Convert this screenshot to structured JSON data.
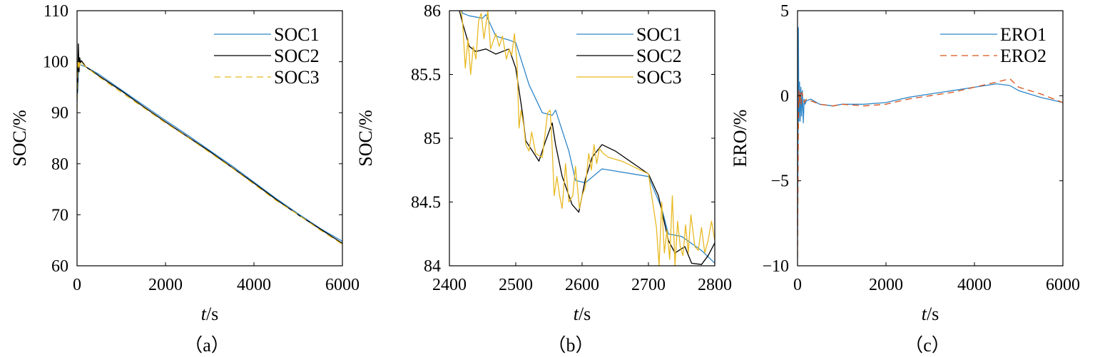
{
  "chart_data": [
    {
      "type": "line",
      "panel_label": "（a）",
      "xlabel_italic": "t",
      "xlabel_rest": "/s",
      "ylabel": "SOC/%",
      "xlim": [
        0,
        6000
      ],
      "ylim": [
        60,
        110
      ],
      "xticks": [
        0,
        2000,
        4000,
        6000
      ],
      "yticks": [
        60,
        70,
        80,
        90,
        100,
        110
      ],
      "legend": "top-right",
      "grid": false,
      "series": [
        {
          "name": "SOC1",
          "color": "#2e86c8",
          "dash": "",
          "width": 1.3,
          "x": [
            0,
            20,
            40,
            60,
            100,
            200,
            500,
            1000,
            1500,
            2000,
            2500,
            3000,
            3500,
            4000,
            4500,
            5000,
            5500,
            6000
          ],
          "y": [
            92,
            95,
            100,
            99.5,
            99.3,
            99,
            97.5,
            94.5,
            91.5,
            88.5,
            85.6,
            82.6,
            79.6,
            76.4,
            73.2,
            70.2,
            67.3,
            64.8
          ]
        },
        {
          "name": "SOC2",
          "color": "#000000",
          "dash": "",
          "width": 1.3,
          "x": [
            0,
            15,
            30,
            45,
            60,
            80,
            100,
            200,
            500,
            1000,
            1500,
            2000,
            2500,
            3000,
            3500,
            4000,
            4500,
            5000,
            5500,
            6000
          ],
          "y": [
            93,
            96,
            103.5,
            98,
            100.8,
            99.8,
            100.2,
            99,
            97.2,
            94.3,
            91.2,
            88.2,
            85.3,
            82.4,
            79.3,
            76.2,
            73,
            70,
            67.2,
            64.4
          ]
        },
        {
          "name": "SOC3",
          "color": "#e8b923",
          "dash": "9,6",
          "width": 1.3,
          "x": [
            0,
            15,
            30,
            45,
            60,
            80,
            100,
            200,
            500,
            1000,
            1500,
            2000,
            2500,
            3000,
            3500,
            4000,
            4500,
            5000,
            5500,
            6000
          ],
          "y": [
            90.5,
            99,
            100.5,
            98.5,
            99.8,
            99.2,
            99.8,
            99,
            97,
            94,
            91,
            88,
            85.2,
            82.2,
            79.2,
            76,
            72.8,
            70,
            67,
            64.2
          ]
        }
      ]
    },
    {
      "type": "line",
      "panel_label": "（b）",
      "xlabel_italic": "t",
      "xlabel_rest": "/s",
      "ylabel": "SOC/%",
      "xlim": [
        2400,
        2800
      ],
      "ylim": [
        84,
        86
      ],
      "xticks": [
        2400,
        2500,
        2600,
        2700,
        2800
      ],
      "yticks": [
        84,
        84.5,
        85,
        85.5,
        86
      ],
      "legend": "top-right",
      "grid": false,
      "series": [
        {
          "name": "SOC1",
          "color": "#2e86c8",
          "dash": "",
          "width": 1.3,
          "x": [
            2400,
            2420,
            2430,
            2450,
            2455,
            2470,
            2490,
            2500,
            2520,
            2540,
            2555,
            2560,
            2580,
            2590,
            2605,
            2630,
            2700,
            2720,
            2730,
            2750,
            2780,
            2800
          ],
          "y": [
            86.2,
            85.98,
            85.96,
            85.94,
            85.97,
            85.8,
            85.77,
            85.75,
            85.42,
            85.2,
            85.18,
            85.22,
            84.9,
            84.67,
            84.65,
            84.76,
            84.7,
            84.45,
            84.25,
            84.23,
            84.12,
            84.02
          ]
        },
        {
          "name": "SOC2",
          "color": "#000000",
          "dash": "",
          "width": 1.3,
          "x": [
            2400,
            2415,
            2420,
            2430,
            2440,
            2455,
            2470,
            2490,
            2500,
            2510,
            2515,
            2525,
            2535,
            2545,
            2555,
            2560,
            2570,
            2585,
            2595,
            2605,
            2615,
            2630,
            2650,
            2700,
            2715,
            2730,
            2740,
            2755,
            2765,
            2780,
            2790,
            2800
          ],
          "y": [
            86.2,
            86,
            85.9,
            85.72,
            85.68,
            85.7,
            85.66,
            85.7,
            85.55,
            85.2,
            84.98,
            84.9,
            84.82,
            84.98,
            85.12,
            84.95,
            84.7,
            84.48,
            84.42,
            84.68,
            84.85,
            84.95,
            84.9,
            84.72,
            84.55,
            84.2,
            84.1,
            84.15,
            84.02,
            84.01,
            84.08,
            84.18
          ]
        },
        {
          "name": "SOC3",
          "color": "#e8b923",
          "dash": "",
          "width": 1.3,
          "x": [
            2400,
            2410,
            2418,
            2420,
            2424,
            2428,
            2432,
            2436,
            2440,
            2444,
            2448,
            2452,
            2458,
            2462,
            2470,
            2475,
            2480,
            2486,
            2490,
            2494,
            2498,
            2502,
            2505,
            2508,
            2512,
            2515,
            2520,
            2524,
            2530,
            2540,
            2548,
            2552,
            2555,
            2558,
            2562,
            2566,
            2570,
            2575,
            2580,
            2586,
            2590,
            2596,
            2600,
            2605,
            2610,
            2614,
            2618,
            2622,
            2626,
            2632,
            2640,
            2660,
            2700,
            2712,
            2716,
            2720,
            2724,
            2728,
            2732,
            2736,
            2740,
            2744,
            2748,
            2752,
            2756,
            2760,
            2764,
            2770,
            2775,
            2780,
            2785,
            2790,
            2795,
            2800
          ],
          "y": [
            86.2,
            86.1,
            86.0,
            85.9,
            85.55,
            85.78,
            85.5,
            85.72,
            85.62,
            85.92,
            85.98,
            85.78,
            86.0,
            85.7,
            85.82,
            85.72,
            85.8,
            85.62,
            85.7,
            85.65,
            85.82,
            85.58,
            85.08,
            85.22,
            85.1,
            84.95,
            84.9,
            85.05,
            84.88,
            84.85,
            85.2,
            85.22,
            84.92,
            84.55,
            84.7,
            84.55,
            84.45,
            84.8,
            84.5,
            84.55,
            84.78,
            84.45,
            84.55,
            84.62,
            84.88,
            84.75,
            84.95,
            84.8,
            84.92,
            84.88,
            84.85,
            84.82,
            84.72,
            84.3,
            84.0,
            84.5,
            84.1,
            84.28,
            84.05,
            84.55,
            84.0,
            84.35,
            84.15,
            84.08,
            84.32,
            84.1,
            84.4,
            84.15,
            84.12,
            84.3,
            84.1,
            84.2,
            84.35,
            84.2
          ]
        }
      ]
    },
    {
      "type": "line",
      "panel_label": "（c）",
      "xlabel_italic": "t",
      "xlabel_rest": "/s",
      "ylabel": "ERO/%",
      "xlim": [
        0,
        6000
      ],
      "ylim": [
        -10,
        5
      ],
      "xticks": [
        0,
        2000,
        4000,
        6000
      ],
      "yticks": [
        -10,
        -5,
        0,
        5
      ],
      "ytick_labels": [
        "−10",
        "−5",
        "0",
        "5"
      ],
      "legend": "top-right",
      "grid": false,
      "series": [
        {
          "name": "ERO1",
          "color": "#2e86c8",
          "dash": "",
          "width": 1.3,
          "x": [
            0,
            10,
            20,
            30,
            45,
            60,
            75,
            90,
            110,
            130,
            150,
            170,
            200,
            300,
            500,
            800,
            1000,
            1500,
            2000,
            2500,
            3000,
            3500,
            4000,
            4500,
            4800,
            5000,
            5500,
            6000
          ],
          "y": [
            -8,
            -3,
            4,
            -1.5,
            0.8,
            -1.5,
            0.5,
            -1.2,
            0.3,
            -1.6,
            -0.2,
            -0.5,
            -0.3,
            -0.2,
            -0.5,
            -0.6,
            -0.5,
            -0.5,
            -0.4,
            -0.1,
            0.1,
            0.3,
            0.5,
            0.7,
            0.6,
            0.3,
            -0.1,
            -0.4
          ]
        },
        {
          "name": "ERO2",
          "color": "#d95319",
          "dash": "9,6",
          "width": 1.3,
          "x": [
            0,
            10,
            20,
            30,
            45,
            60,
            80,
            100,
            150,
            200,
            300,
            500,
            800,
            1000,
            1500,
            2000,
            2500,
            3000,
            3500,
            4000,
            4500,
            4800,
            5000,
            5500,
            6000
          ],
          "y": [
            -9.5,
            -5.5,
            -1.5,
            0.3,
            -0.5,
            0.2,
            -0.5,
            0.2,
            -0.4,
            -0.2,
            -0.3,
            -0.5,
            -0.6,
            -0.5,
            -0.6,
            -0.5,
            -0.2,
            0.0,
            0.2,
            0.5,
            0.8,
            1.0,
            0.5,
            0.1,
            -0.4
          ]
        }
      ]
    }
  ]
}
